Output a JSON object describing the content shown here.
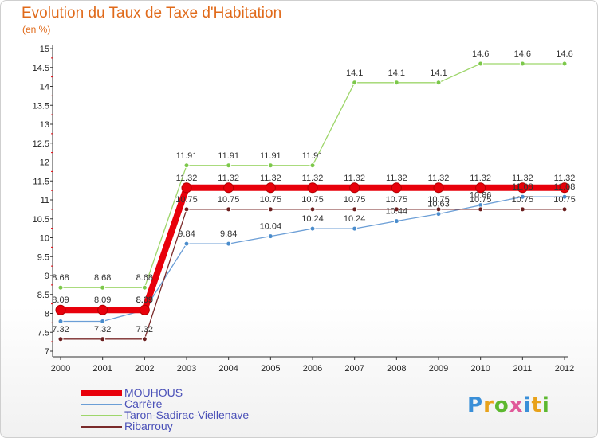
{
  "title": "Evolution du Taux de Taxe d'Habitation",
  "unit": "(en %)",
  "logo": "Proxiti",
  "chart_data": {
    "type": "line",
    "title": "Evolution du Taux de Taxe d'Habitation",
    "ylabel": "(en %)",
    "x": [
      "2000",
      "2001",
      "2002",
      "2003",
      "2004",
      "2005",
      "2006",
      "2007",
      "2008",
      "2009",
      "2010",
      "2011",
      "2012"
    ],
    "ylim": [
      7,
      15
    ],
    "yticks": [
      "7",
      "7.5",
      "8",
      "8.5",
      "9",
      "9.5",
      "10",
      "10.5",
      "11",
      "11.5",
      "12",
      "12.5",
      "13",
      "13.5",
      "14",
      "14.5",
      "15"
    ],
    "grid": false,
    "legend_position": "bottom-left",
    "series": [
      {
        "name": "MOUHOUS",
        "color": "#e8000b",
        "width": 8,
        "dot": "#e8000b",
        "values": [
          8.09,
          8.09,
          8.09,
          11.32,
          11.32,
          11.32,
          11.32,
          11.32,
          11.32,
          11.32,
          11.32,
          11.32,
          11.32
        ],
        "labels": [
          "8.09",
          "8.09",
          "8.09",
          "11.32",
          "11.32",
          "11.32",
          "11.32",
          "11.32",
          "11.32",
          "11.32",
          "11.32",
          "11.32",
          "11.32"
        ]
      },
      {
        "name": "Carrère",
        "color": "#6b9ed6",
        "width": 1.3,
        "dot": "#4a8ccc",
        "values": [
          7.79,
          7.79,
          8.09,
          9.84,
          9.84,
          10.04,
          10.24,
          10.24,
          10.44,
          10.63,
          10.86,
          11.08,
          11.08
        ],
        "labels": [
          "",
          "",
          "8.09",
          "9.84",
          "9.84",
          "10.04",
          "10.24",
          "10.24",
          "10.44",
          "10.63",
          "10.86",
          "11.08",
          "11.08"
        ]
      },
      {
        "name": "Taron-Sadirac-Viellenave",
        "color": "#9ed66b",
        "width": 1.3,
        "dot": "#7cc84a",
        "values": [
          8.68,
          8.68,
          8.68,
          11.91,
          11.91,
          11.91,
          11.91,
          14.1,
          14.1,
          14.1,
          14.6,
          14.6,
          14.6
        ],
        "labels": [
          "8.68",
          "8.68",
          "8.68",
          "11.91",
          "11.91",
          "11.91",
          "11.91",
          "14.1",
          "14.1",
          "14.1",
          "14.6",
          "14.6",
          "14.6"
        ]
      },
      {
        "name": "Ribarrouy",
        "color": "#7a2a2a",
        "width": 1.3,
        "dot": "#6b1f1f",
        "values": [
          7.32,
          7.32,
          7.32,
          10.75,
          10.75,
          10.75,
          10.75,
          10.75,
          10.75,
          10.75,
          10.75,
          10.75,
          10.75
        ],
        "labels": [
          "7.32",
          "7.32",
          "7.32",
          "10.75",
          "10.75",
          "10.75",
          "10.75",
          "10.75",
          "10.75",
          "10.75",
          "10.75",
          "10.75",
          "10.75"
        ]
      }
    ]
  }
}
